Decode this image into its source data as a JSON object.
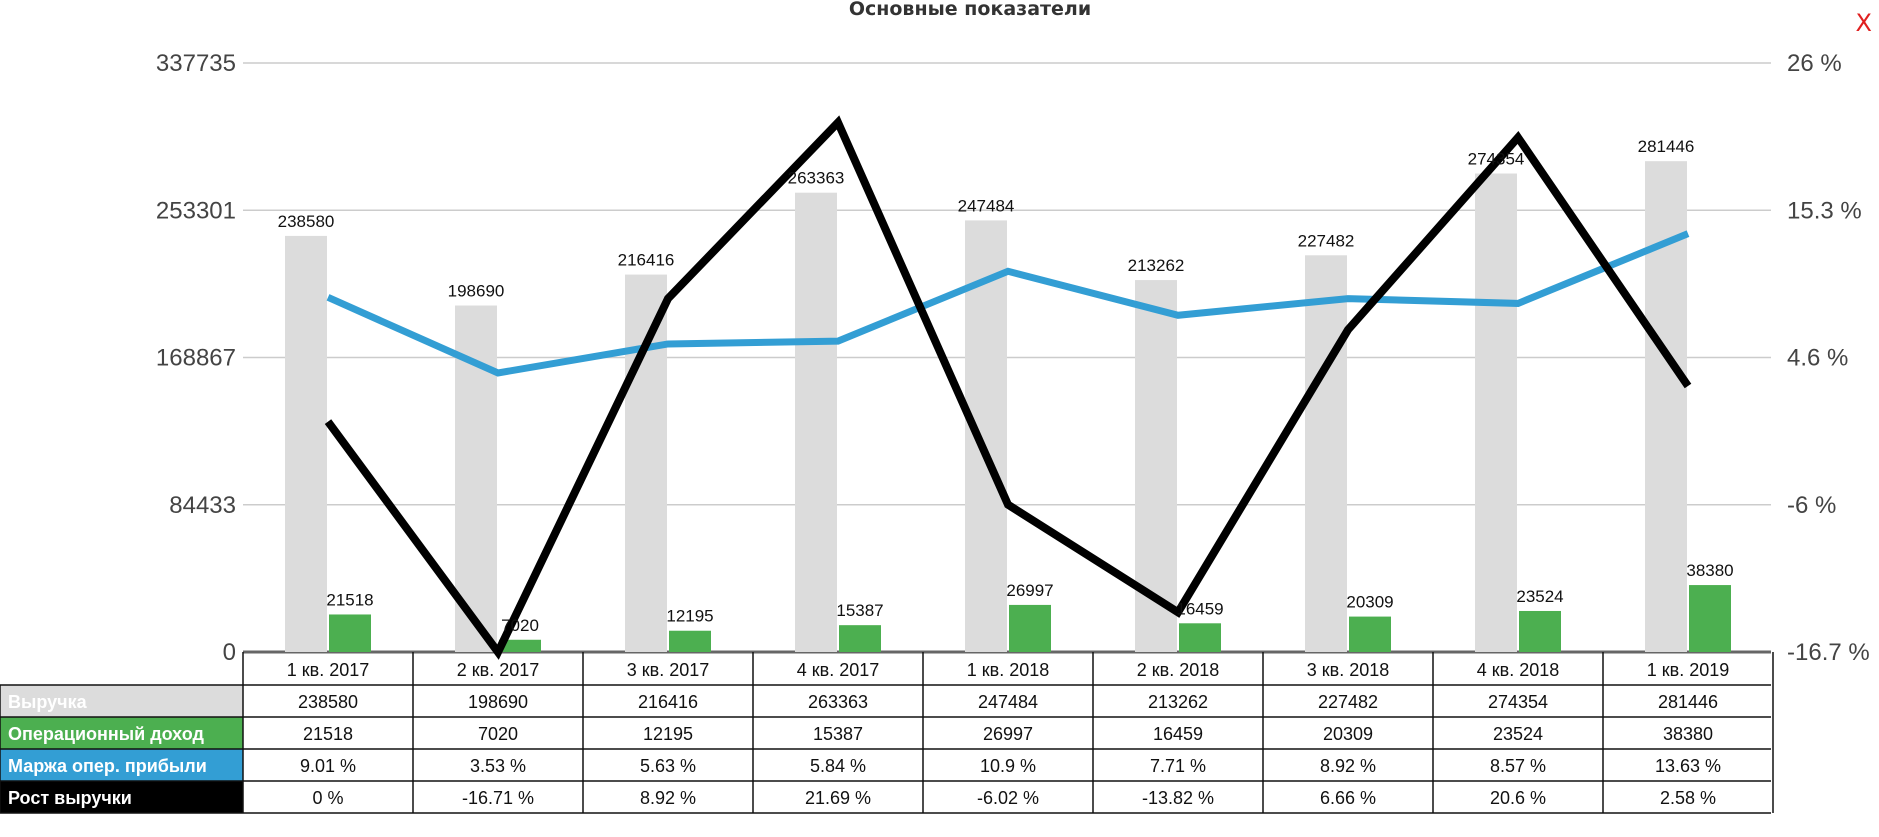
{
  "close_label": "X",
  "chart_data": {
    "type": "bar",
    "title": "Основные показатели",
    "categories": [
      "1 кв. 2017",
      "2 кв. 2017",
      "3 кв. 2017",
      "4 кв. 2017",
      "1 кв. 2018",
      "2 кв. 2018",
      "3 кв. 2018",
      "4 кв. 2018",
      "1 кв. 2019"
    ],
    "y_left": {
      "ticks": [
        "337735",
        "253301",
        "168867",
        "84433",
        "0"
      ],
      "range": [
        0,
        337735
      ]
    },
    "y_right": {
      "ticks": [
        "26 %",
        "15.3 %",
        "4.6 %",
        "-6 %",
        "-16.7 %"
      ],
      "range": [
        -16.7,
        26
      ]
    },
    "grid": true,
    "legend": "table-bottom",
    "series": [
      {
        "name": "Выручка",
        "type": "bar",
        "axis": "left",
        "color": "#dcdcdc",
        "values": [
          238580,
          198690,
          216416,
          263363,
          247484,
          213262,
          227482,
          274354,
          281446
        ],
        "table": [
          "238580",
          "198690",
          "216416",
          "263363",
          "247484",
          "213262",
          "227482",
          "274354",
          "281446"
        ]
      },
      {
        "name": "Операционный доход",
        "type": "bar",
        "axis": "left",
        "color": "#4caf50",
        "values": [
          21518,
          7020,
          12195,
          15387,
          26997,
          16459,
          20309,
          23524,
          38380
        ],
        "table": [
          "21518",
          "7020",
          "12195",
          "15387",
          "26997",
          "16459",
          "20309",
          "23524",
          "38380"
        ]
      },
      {
        "name": "Маржа опер. прибыли",
        "type": "line",
        "axis": "right",
        "color": "#339ed4",
        "values": [
          9.01,
          3.53,
          5.63,
          5.84,
          10.9,
          7.71,
          8.92,
          8.57,
          13.63
        ],
        "table": [
          "9.01 %",
          "3.53 %",
          "5.63 %",
          "5.84 %",
          "10.9 %",
          "7.71 %",
          "8.92 %",
          "8.57 %",
          "13.63 %"
        ]
      },
      {
        "name": "Рост выручки",
        "type": "line",
        "axis": "right",
        "color": "#000000",
        "values": [
          0,
          -16.71,
          8.92,
          21.69,
          -6.02,
          -13.82,
          6.66,
          20.6,
          2.58
        ],
        "table": [
          "0 %",
          "-16.71 %",
          "8.92 %",
          "21.69 %",
          "-6.02 %",
          "-13.82 %",
          "6.66 %",
          "20.6 %",
          "2.58 %"
        ]
      }
    ]
  }
}
